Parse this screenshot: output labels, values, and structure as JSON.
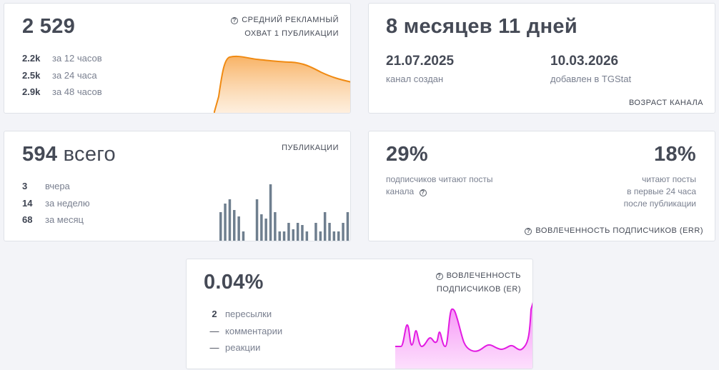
{
  "reach_card": {
    "value": "2 529",
    "caption_line1": "СРЕДНИЙ РЕКЛАМНЫЙ",
    "caption_line2": "ОХВАТ 1 ПУБЛИКАЦИИ",
    "rows": [
      {
        "value": "2.2k",
        "label": "за 12 часов"
      },
      {
        "value": "2.5k",
        "label": "за 24 часа"
      },
      {
        "value": "2.9k",
        "label": "за 48 часов"
      }
    ],
    "chart_color": "#f5941e"
  },
  "age_card": {
    "title": "8 месяцев 11 дней",
    "created_date": "21.07.2025",
    "created_label": "канал создан",
    "added_date": "10.03.2026",
    "added_label": "добавлен в TGStat",
    "caption": "ВОЗРАСТ КАНАЛА"
  },
  "posts_card": {
    "value": "594",
    "value_suffix": "всего",
    "caption": "ПУБЛИКАЦИИ",
    "rows": [
      {
        "value": "3",
        "label": "вчера"
      },
      {
        "value": "14",
        "label": "за неделю"
      },
      {
        "value": "68",
        "label": "за месяц"
      }
    ],
    "bar_color": "#6f7f8f",
    "bars": [
      0.7,
      0.9,
      1.0,
      0.75,
      0.6,
      0.25,
      0,
      0,
      1.0,
      0.65,
      0.55,
      1.35,
      0.7,
      0.25,
      0.25,
      0.45,
      0.3,
      0.45,
      0.4,
      0.25,
      0,
      0.45,
      0.25,
      0.7,
      0.45,
      0.25,
      0.25,
      0.45,
      0.7
    ]
  },
  "err_card": {
    "left_value": "29%",
    "left_label_line1": "подписчиков читают посты",
    "left_label_line2": "канала",
    "right_value": "18%",
    "right_label_line1": "читают посты",
    "right_label_line2": "в первые 24 часа",
    "right_label_line3": "после публикации",
    "caption": "ВОВЛЕЧЕННОСТЬ ПОДПИСЧИКОВ (ERR)"
  },
  "er_card": {
    "value": "0.04%",
    "caption_line1": "ВОВЛЕЧЕННОСТЬ",
    "caption_line2": "ПОДПИСЧИКОВ (ER)",
    "rows": [
      {
        "value": "2",
        "label": "пересылки"
      },
      {
        "value": "—",
        "label": "комментарии"
      },
      {
        "value": "—",
        "label": "реакции"
      }
    ],
    "chart_color": "#e619e6"
  }
}
